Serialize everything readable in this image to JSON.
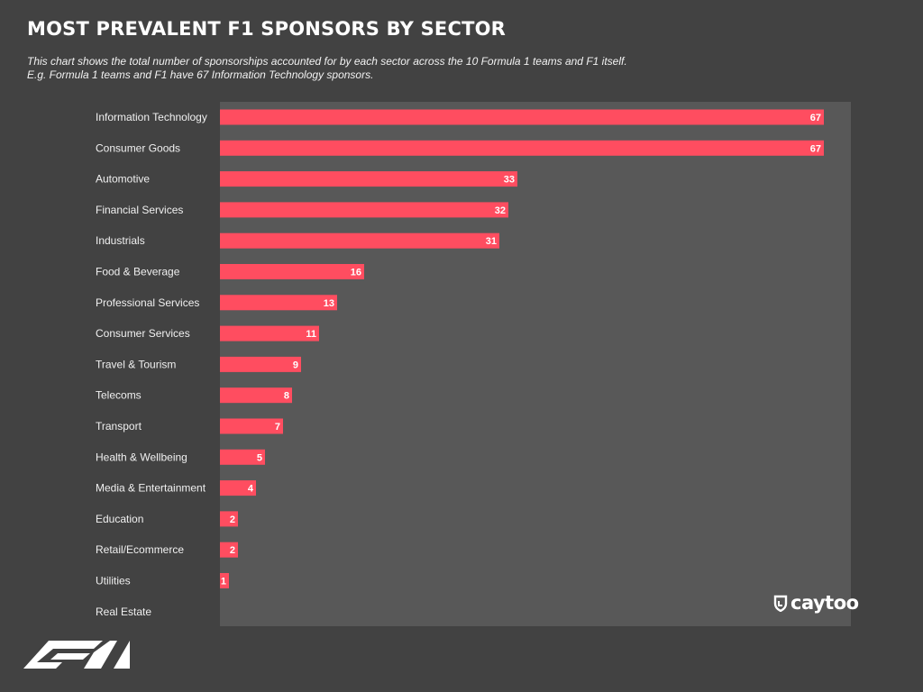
{
  "title": "MOST PREVALENT F1 SPONSORS BY SECTOR",
  "subtitle": [
    "This chart shows the total number of sponsorships accounted for by each sector across the 10 Formula 1 teams and F1 itself.",
    "E.g. Formula 1 teams and F1 have 67 Information Technology sponsors."
  ],
  "colors": {
    "background": "#424242",
    "plot_background": "#585858",
    "bar": "#ff4d60"
  },
  "brand": {
    "name": "caytoo",
    "icon": "caytoo-shield-icon"
  },
  "footer_logo": {
    "icon": "f1-logo-icon"
  },
  "chart_data": {
    "type": "bar",
    "orientation": "horizontal",
    "title": "MOST PREVALENT F1 SPONSORS BY SECTOR",
    "categories": [
      "Information Technology",
      "Consumer Goods",
      "Automotive",
      "Financial Services",
      "Industrials",
      "Food & Beverage",
      "Professional Services",
      "Consumer Services",
      "Travel & Tourism",
      "Telecoms",
      "Transport",
      "Health & Wellbeing",
      "Media & Entertainment",
      "Education",
      "Retail/Ecommerce",
      "Utilities",
      "Real Estate"
    ],
    "values": [
      67,
      67,
      33,
      32,
      31,
      16,
      13,
      11,
      9,
      8,
      7,
      5,
      4,
      2,
      2,
      1,
      null
    ],
    "value_labels": [
      "67",
      "67",
      "33",
      "32",
      "31",
      "16",
      "13",
      "11",
      "9",
      "8",
      "7",
      "5",
      "4",
      "2",
      "2",
      "1",
      ""
    ],
    "xlim": [
      0,
      70
    ],
    "grid": false,
    "legend": "none"
  }
}
